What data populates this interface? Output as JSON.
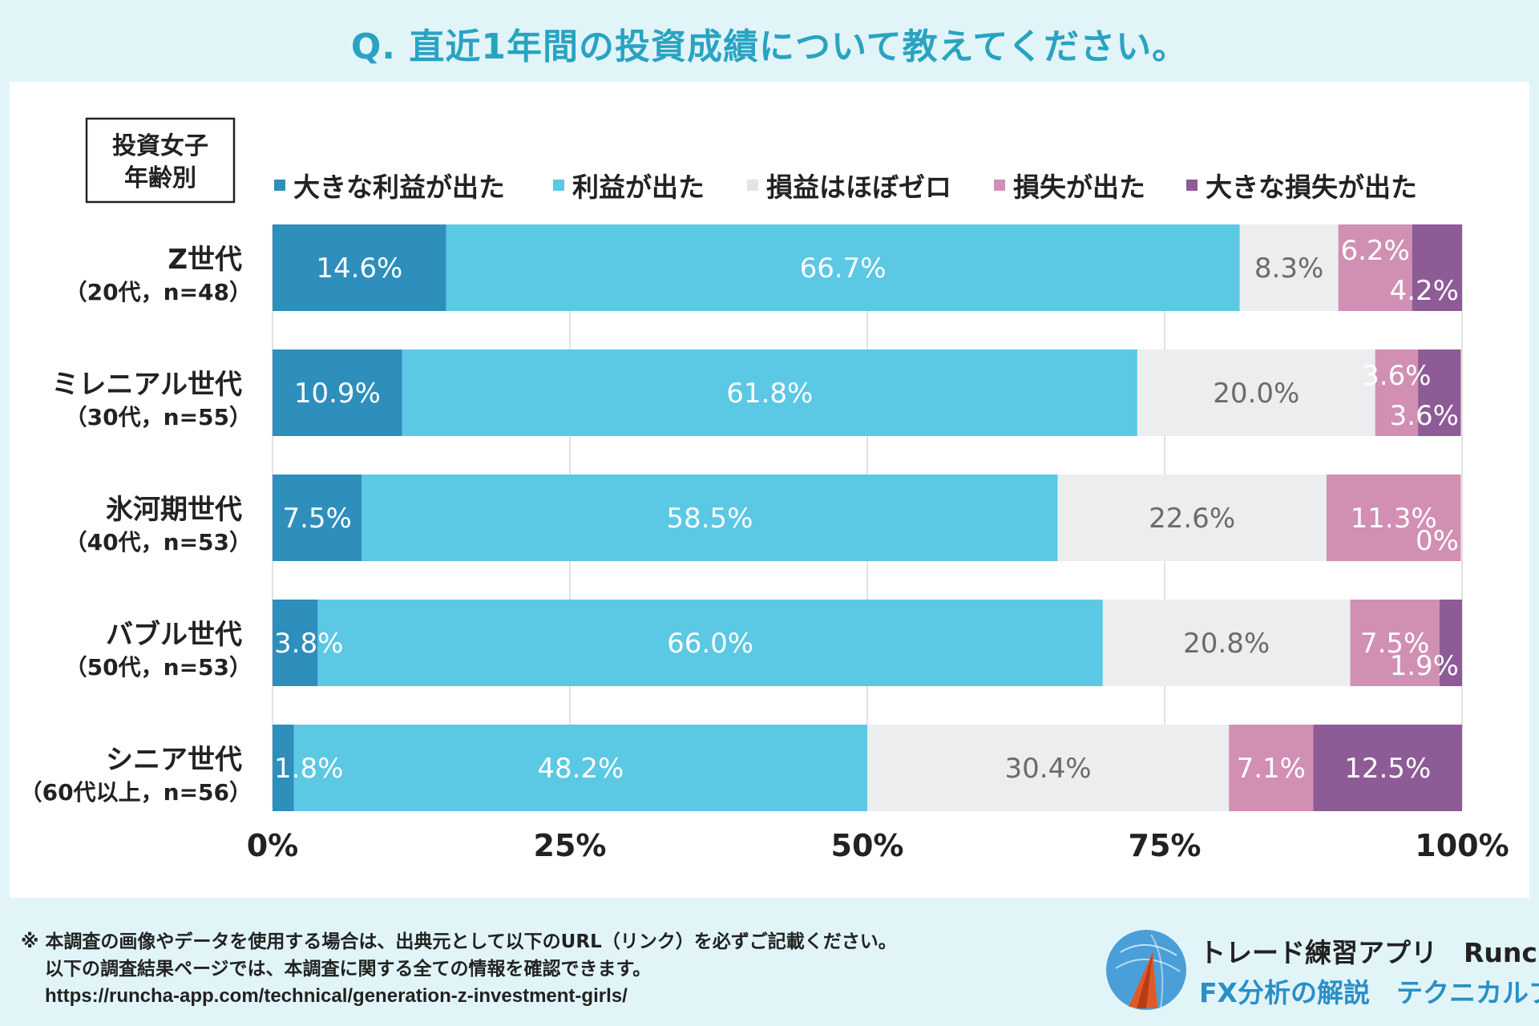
{
  "title": "Q. 直近1年間の投資成績について教えてください。",
  "chart_data": {
    "type": "bar",
    "orientation": "horizontal-stacked-100",
    "corner_label": [
      "投資女子",
      "年齢別"
    ],
    "legend": [
      {
        "name": "大きな利益が出た",
        "color": "#2e8ebc"
      },
      {
        "name": "利益が出た",
        "color": "#5bc8e4"
      },
      {
        "name": "損益はほぼゼロ",
        "color": "#ecedef"
      },
      {
        "name": "損失が出た",
        "color": "#d18fb4"
      },
      {
        "name": "大きな損失が出た",
        "color": "#8d5b96"
      }
    ],
    "categories": [
      {
        "name": "Z世代",
        "sub": "（20代，n=48）"
      },
      {
        "name": "ミレニアル世代",
        "sub": "（30代，n=55）"
      },
      {
        "name": "氷河期世代",
        "sub": "（40代，n=53）"
      },
      {
        "name": "バブル世代",
        "sub": "（50代，n=53）"
      },
      {
        "name": "シニア世代",
        "sub": "（60代以上，n=56）"
      }
    ],
    "series": [
      {
        "name": "大きな利益が出た",
        "values": [
          14.6,
          10.9,
          7.5,
          3.8,
          1.8
        ],
        "labels": [
          "14.6%",
          "10.9%",
          "7.5%",
          "3.8%",
          "1.8%"
        ]
      },
      {
        "name": "利益が出た",
        "values": [
          66.7,
          61.8,
          58.5,
          66.0,
          48.2
        ],
        "labels": [
          "66.7%",
          "61.8%",
          "58.5%",
          "66.0%",
          "48.2%"
        ]
      },
      {
        "name": "損益はほぼゼロ",
        "values": [
          8.3,
          20.0,
          22.6,
          20.8,
          30.4
        ],
        "labels": [
          "8.3%",
          "20.0%",
          "22.6%",
          "20.8%",
          "30.4%"
        ]
      },
      {
        "name": "損失が出た",
        "values": [
          6.2,
          3.6,
          11.3,
          7.5,
          7.1
        ],
        "labels": [
          "6.2%",
          "3.6%",
          "11.3%",
          "7.5%",
          "7.1%"
        ]
      },
      {
        "name": "大きな損失が出た",
        "values": [
          4.2,
          3.6,
          0,
          1.9,
          12.5
        ],
        "labels": [
          "4.2%",
          "3.6%",
          "0%",
          "1.9%",
          "12.5%"
        ]
      }
    ],
    "xlim": [
      0,
      100
    ],
    "xticks": [
      "0%",
      "25%",
      "50%",
      "75%",
      "100%"
    ],
    "grid": true
  },
  "footer": {
    "note_line1": "※ 本調査の画像やデータを使用する場合は、出典元として以下のURL（リンク）を必ずご記載ください。",
    "note_line2": "以下の調査結果ページでは、本調査に関する全ての情報を確認できます。",
    "url": "https://runcha-app.com/technical/generation-z-investment-girls/"
  },
  "brand": {
    "line1": "トレード練習アプリ　Runcha",
    "line2": "FX分析の解説　テクニカルブック"
  }
}
